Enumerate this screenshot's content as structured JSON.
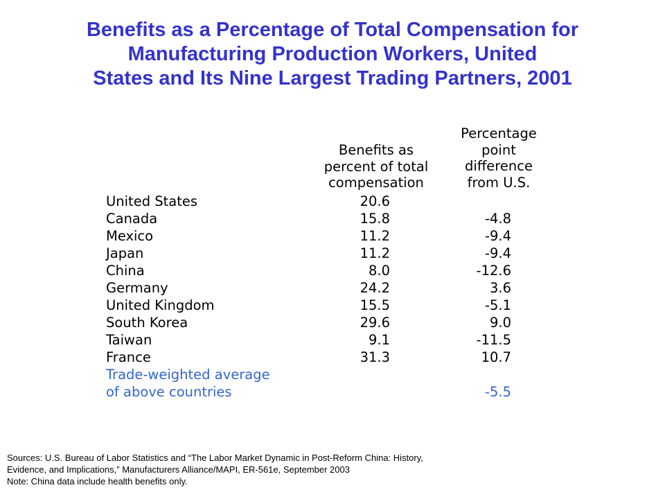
{
  "title": {
    "line1": "Benefits as a Percentage of Total Compensation for",
    "line2": "Manufacturing Production Workers, United",
    "line3": "States and Its Nine Largest Trading Partners, 2001"
  },
  "headers": {
    "benefits": [
      "Benefits as",
      "percent of total",
      "compensation"
    ],
    "difference": [
      "Percentage",
      "point",
      "difference",
      "from U.S."
    ]
  },
  "chart_data": {
    "type": "table",
    "title": "Benefits as a Percentage of Total Compensation for Manufacturing Production Workers, United States and Its Nine Largest Trading Partners, 2001",
    "columns": [
      "",
      "Benefits as percent of total compensation",
      "Percentage point difference from U.S."
    ],
    "rows": [
      {
        "country": "United States",
        "benefits": "20.6",
        "diff": ""
      },
      {
        "country": "Canada",
        "benefits": "15.8",
        "diff": "-4.8"
      },
      {
        "country": "Mexico",
        "benefits": "11.2",
        "diff": "-9.4"
      },
      {
        "country": "Japan",
        "benefits": "11.2",
        "diff": "-9.4"
      },
      {
        "country": "China",
        "benefits": "8.0",
        "diff": "-12.6"
      },
      {
        "country": "Germany",
        "benefits": "24.2",
        "diff": "3.6"
      },
      {
        "country": "United Kingdom",
        "benefits": "15.5",
        "diff": "-5.1"
      },
      {
        "country": "South Korea",
        "benefits": "29.6",
        "diff": "9.0"
      },
      {
        "country": "Taiwan",
        "benefits": "9.1",
        "diff": "-11.5"
      },
      {
        "country": "France",
        "benefits": "31.3",
        "diff": "10.7"
      }
    ],
    "average": {
      "label_line1": "Trade-weighted average",
      "label_line2": "of above countries",
      "diff": "-5.5"
    }
  },
  "colors": {
    "title": "#3333cc",
    "average": "#3366cc",
    "text": "#000000"
  },
  "sources": {
    "line1": "Sources:  U.S. Bureau of Labor Statistics and “The Labor Market Dynamic in Post-Reform China: History,",
    "line2": "Evidence, and Implications,” Manufacturers Alliance/MAPI, ER-561e, September 2003",
    "line3": "Note:  China data include health benefits only."
  }
}
